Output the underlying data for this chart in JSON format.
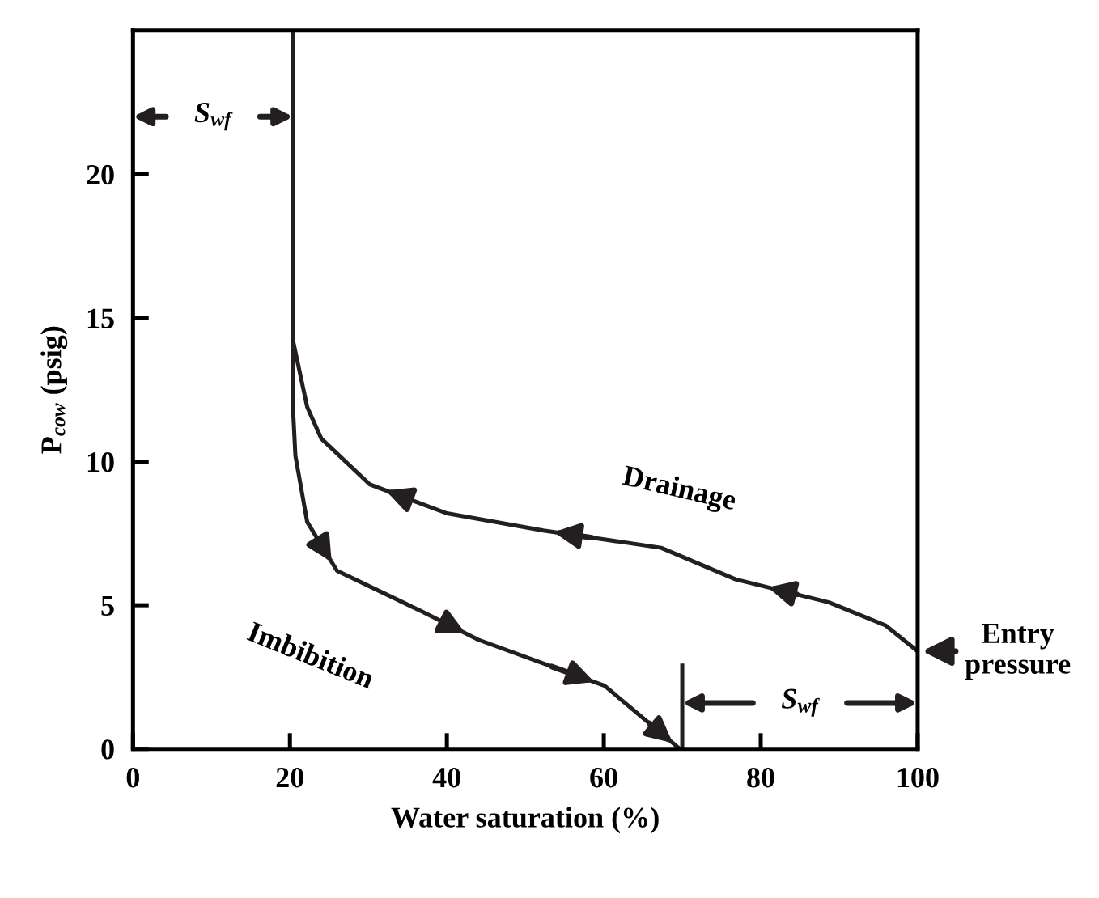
{
  "chart_data": {
    "type": "line",
    "xlabel": "Water saturation (%)",
    "ylabel": "P$_{cow}$ (psig)",
    "xlim": [
      0,
      100
    ],
    "ylim": [
      0,
      25
    ],
    "xticks": [
      0,
      20,
      40,
      60,
      80,
      100
    ],
    "yticks": [
      0,
      5,
      10,
      15,
      20
    ],
    "grid": false,
    "marker": "none",
    "line_style": "solid",
    "series": [
      {
        "color": "#231f20",
        "x": [
          100,
          95.9,
          88.7,
          76.8,
          67.3,
          52.3,
          40,
          30.2,
          24.0,
          22.2,
          20.4,
          20.4
        ],
        "values": [
          3.4,
          4.3,
          5.1,
          5.9,
          7.0,
          7.6,
          8.2,
          9.2,
          10.8,
          11.9,
          14.2,
          25
        ]
      },
      {
        "color": "#231f20",
        "x": [
          20.4,
          20.4,
          20.7,
          22.2,
          26,
          36.7,
          44,
          60.1,
          69.7
        ],
        "values": [
          14.2,
          11.8,
          10.2,
          7.9,
          6.2,
          4.8,
          3.8,
          2.2,
          0
        ]
      },
      {
        "color": "#231f20",
        "x": [
          70,
          70
        ],
        "values": [
          0,
          2.9
        ]
      }
    ],
    "annotations": [
      "Drainage",
      "Imbibition",
      {
        "text": "Entry\npressure",
        "x": 100,
        "y": 3.4
      },
      "S$_{wf}$",
      "S$_{wf}$"
    ]
  }
}
